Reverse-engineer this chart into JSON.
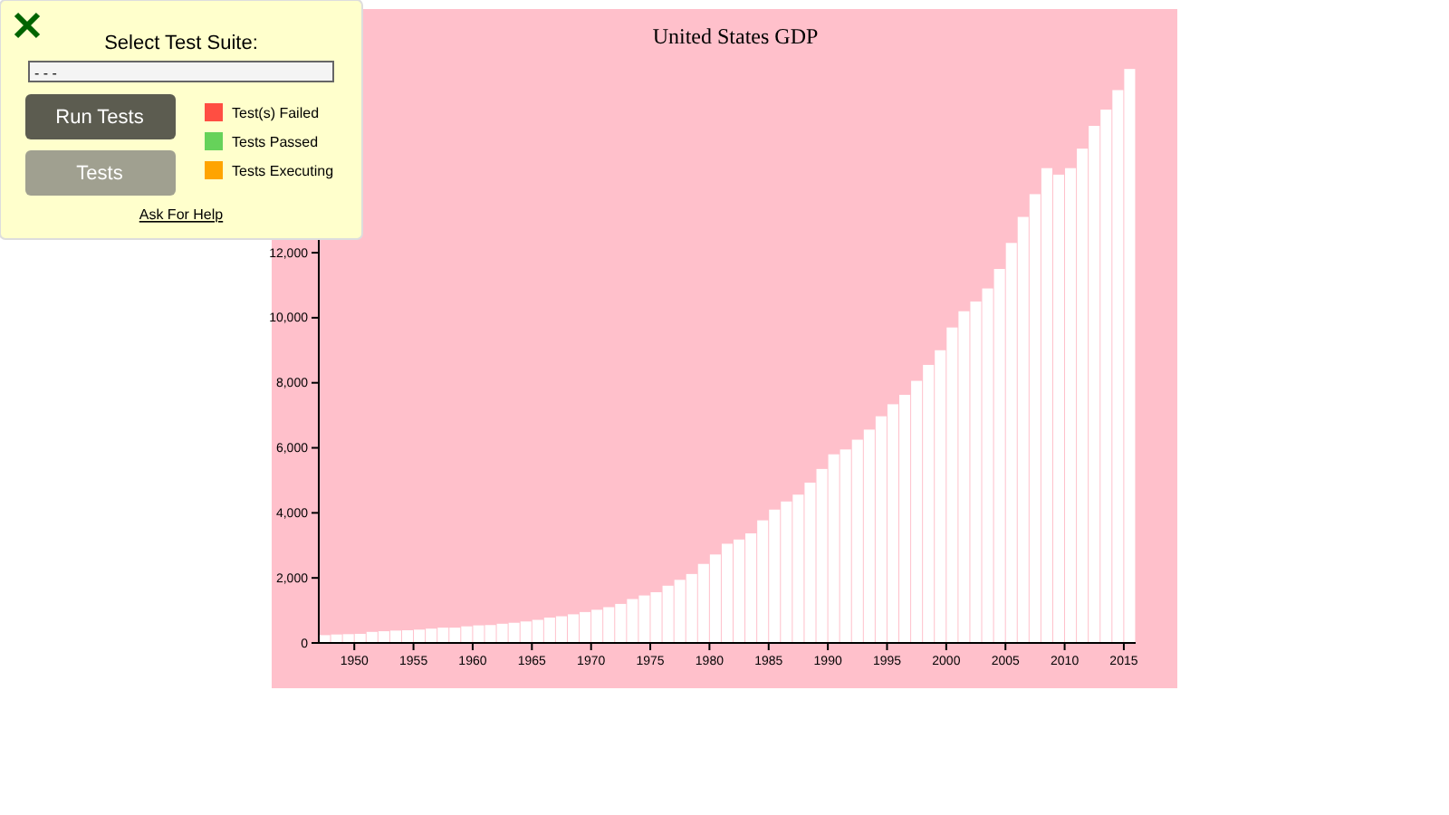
{
  "chart_data": {
    "type": "bar",
    "title": "United States GDP",
    "x": [
      "1947-07",
      "1948-07",
      "1949-07",
      "1950-07",
      "1951-07",
      "1952-07",
      "1953-07",
      "1954-07",
      "1955-07",
      "1956-07",
      "1957-07",
      "1958-07",
      "1959-07",
      "1960-07",
      "1961-07",
      "1962-07",
      "1963-07",
      "1964-07",
      "1965-07",
      "1966-07",
      "1967-07",
      "1968-07",
      "1969-07",
      "1970-07",
      "1971-07",
      "1972-07",
      "1973-07",
      "1974-07",
      "1975-07",
      "1976-07",
      "1977-07",
      "1978-07",
      "1979-07",
      "1980-07",
      "1981-07",
      "1982-07",
      "1983-07",
      "1984-07",
      "1985-07",
      "1986-07",
      "1987-07",
      "1988-07",
      "1989-07",
      "1990-07",
      "1991-07",
      "1992-07",
      "1993-07",
      "1994-07",
      "1995-07",
      "1996-07",
      "1997-07",
      "1998-07",
      "1999-07",
      "2000-07",
      "2001-07",
      "2002-07",
      "2003-07",
      "2004-07",
      "2005-07",
      "2006-07",
      "2007-07",
      "2008-07",
      "2009-07",
      "2010-07",
      "2011-07",
      "2012-07",
      "2013-07",
      "2014-07",
      "2015-07"
    ],
    "values": [
      240,
      260,
      270,
      280,
      340,
      360,
      380,
      390,
      410,
      440,
      470,
      470,
      510,
      540,
      550,
      590,
      620,
      660,
      710,
      780,
      820,
      880,
      950,
      1020,
      1100,
      1200,
      1350,
      1460,
      1560,
      1760,
      1940,
      2120,
      2430,
      2720,
      3050,
      3180,
      3370,
      3770,
      4100,
      4350,
      4560,
      4930,
      5350,
      5800,
      5950,
      6250,
      6560,
      6970,
      7340,
      7630,
      8060,
      8550,
      9000,
      9700,
      10200,
      10500,
      10900,
      11500,
      12300,
      13100,
      13800,
      14600,
      14400,
      14600,
      15200,
      15900,
      16400,
      17000,
      17650
    ],
    "color": "#ffffff",
    "xlim": [
      "1947",
      "2016"
    ],
    "xticks": [
      {
        "value": "1950",
        "label": "1950"
      },
      {
        "value": "1955",
        "label": "1955"
      },
      {
        "value": "1960",
        "label": "1960"
      },
      {
        "value": "1965",
        "label": "1965"
      },
      {
        "value": "1970",
        "label": "1970"
      },
      {
        "value": "1975",
        "label": "1975"
      },
      {
        "value": "1980",
        "label": "1980"
      },
      {
        "value": "1985",
        "label": "1985"
      },
      {
        "value": "1990",
        "label": "1990"
      },
      {
        "value": "1995",
        "label": "1995"
      },
      {
        "value": "2000",
        "label": "2000"
      },
      {
        "value": "2005",
        "label": "2005"
      },
      {
        "value": "2010",
        "label": "2010"
      },
      {
        "value": "2015",
        "label": "2015"
      }
    ],
    "ylim": [
      0,
      18100
    ],
    "yticks": [
      {
        "value": 0,
        "label": "0"
      },
      {
        "value": 2000,
        "label": "2,000"
      },
      {
        "value": 4000,
        "label": "4,000"
      },
      {
        "value": 6000,
        "label": "6,000"
      },
      {
        "value": 8000,
        "label": "8,000"
      },
      {
        "value": 10000,
        "label": "10,000"
      },
      {
        "value": 12000,
        "label": "12,000"
      }
    ],
    "annotations": [
      "Select Test Suite:",
      "- - -",
      "Run Tests",
      "Tests",
      "Test(s) Failed",
      "Tests Passed",
      "Tests Executing",
      "Ask For Help"
    ]
  }
}
